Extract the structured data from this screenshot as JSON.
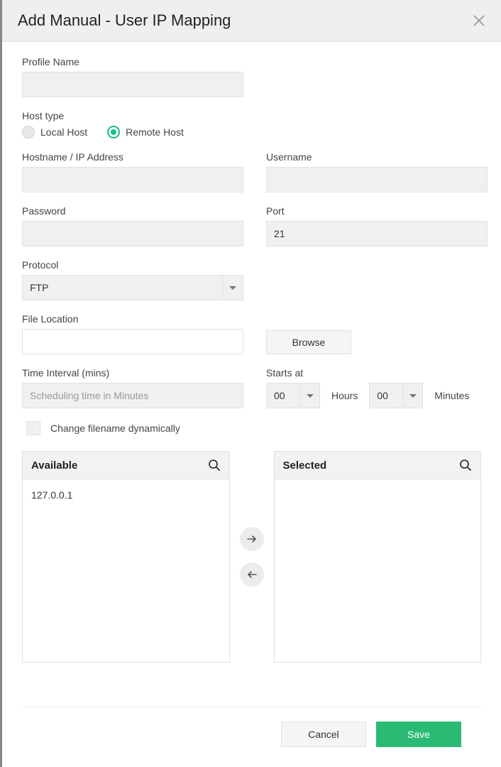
{
  "header": {
    "title": "Add Manual - User IP Mapping"
  },
  "profile": {
    "label": "Profile Name",
    "value": ""
  },
  "hostType": {
    "label": "Host type",
    "options": [
      {
        "label": "Local Host",
        "selected": false
      },
      {
        "label": "Remote Host",
        "selected": true
      }
    ]
  },
  "hostname": {
    "label": "Hostname / IP Address",
    "value": ""
  },
  "username": {
    "label": "Username",
    "value": ""
  },
  "password": {
    "label": "Password",
    "value": ""
  },
  "port": {
    "label": "Port",
    "value": "21"
  },
  "protocol": {
    "label": "Protocol",
    "value": "FTP"
  },
  "fileLocation": {
    "label": "File Location",
    "value": "",
    "browse": "Browse"
  },
  "timeInterval": {
    "label": "Time Interval (mins)",
    "placeholder": "Scheduling time in Minutes",
    "value": ""
  },
  "startsAt": {
    "label": "Starts at",
    "hours": "00",
    "hoursUnit": "Hours",
    "minutes": "00",
    "minutesUnit": "Minutes"
  },
  "dynamicFilename": {
    "label": "Change filename dynamically",
    "checked": false
  },
  "available": {
    "title": "Available",
    "items": [
      "127.0.0.1"
    ]
  },
  "selected": {
    "title": "Selected",
    "items": []
  },
  "footer": {
    "cancel": "Cancel",
    "save": "Save"
  },
  "colors": {
    "accent": "#18c183",
    "saveBtn": "#2bba74"
  }
}
